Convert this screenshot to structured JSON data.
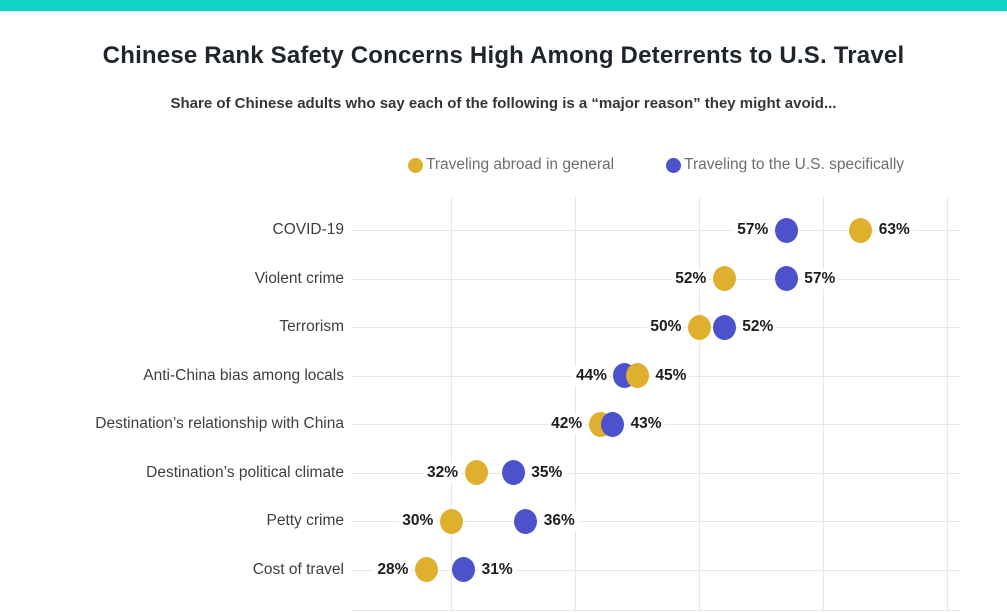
{
  "page": {
    "accent_color": "#0fd4c5",
    "background": "#ffffff"
  },
  "header": {
    "title": "Chinese Rank Safety Concerns High Among Deterrents to U.S. Travel",
    "subtitle": "Share of Chinese adults who say each of the following is a “major reason” they might avoid..."
  },
  "legend": [
    {
      "label": "Traveling abroad in general",
      "color": "#dfb02e"
    },
    {
      "label": "Traveling to the U.S. specifically",
      "color": "#4b52cb"
    }
  ],
  "chart_data": {
    "type": "scatter",
    "variant": "horizontal-dot-plot",
    "title": "Chinese Rank Safety Concerns High Among Deterrents to U.S. Travel",
    "subtitle": "Share of Chinese adults who say each of the following is a “major reason” they might avoid...",
    "categories": [
      "COVID-19",
      "Violent crime",
      "Terrorism",
      "Anti-China bias among locals",
      "Destination’s relationship with China",
      "Destination’s political climate",
      "Petty crime",
      "Cost of travel"
    ],
    "series": [
      {
        "name": "Traveling abroad in general",
        "color": "#dfb02e",
        "values": [
          63,
          52,
          50,
          45,
          42,
          32,
          30,
          28
        ]
      },
      {
        "name": "Traveling to the U.S. specifically",
        "color": "#4b52cb",
        "values": [
          57,
          57,
          52,
          44,
          43,
          35,
          36,
          31
        ]
      }
    ],
    "label_format": "{v}%",
    "unit": "percent",
    "xlim": [
      22,
      71
    ],
    "gridline_values": [
      30,
      40,
      50,
      60,
      70
    ],
    "grid": true,
    "x_tick_labels_visible": false,
    "legend_position": "top"
  }
}
